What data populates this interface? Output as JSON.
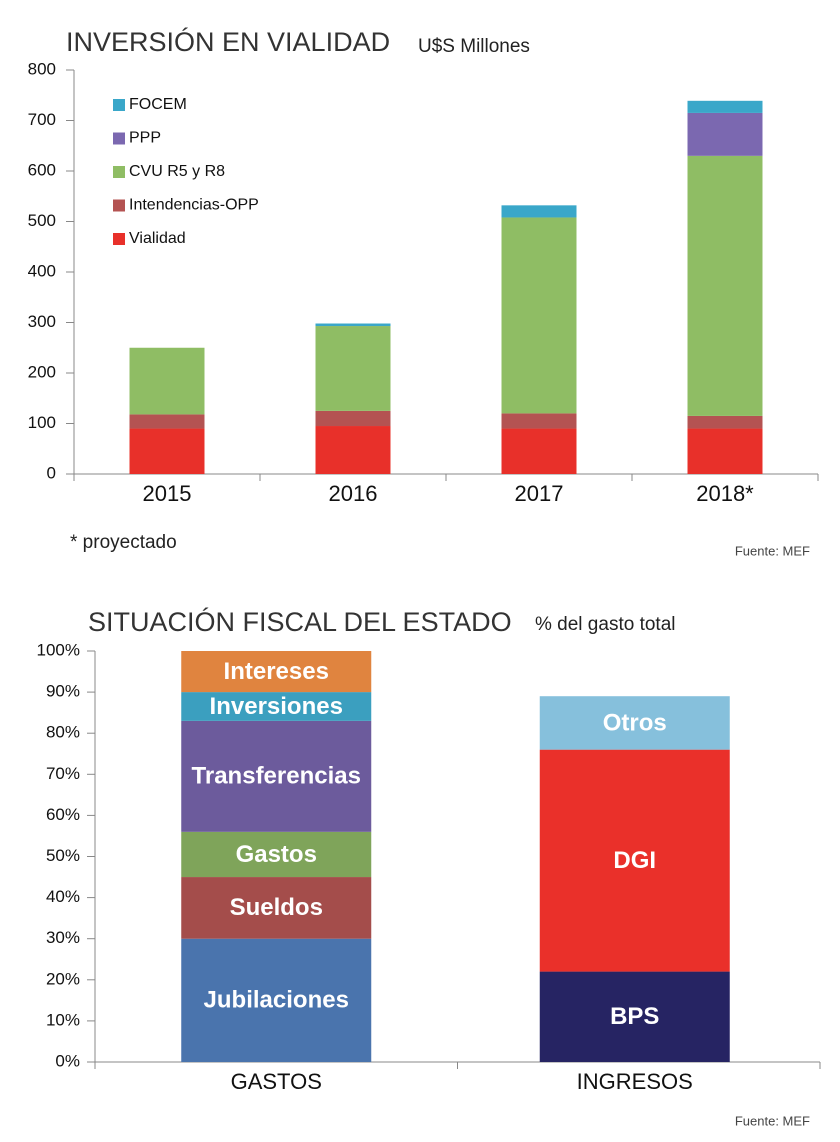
{
  "chart_data": [
    {
      "type": "bar",
      "stacked": true,
      "title": "INVERSIÓN EN  VIALIDAD",
      "subtitle": "U$S Millones",
      "categories": [
        "2015",
        "2016",
        "2017",
        "2018*"
      ],
      "series": [
        {
          "name": "Vialidad",
          "color": "#e8302a",
          "values": [
            90,
            95,
            90,
            90
          ]
        },
        {
          "name": "Intendencias-OPP",
          "color": "#b45352",
          "values": [
            28,
            30,
            30,
            25
          ]
        },
        {
          "name": "CVU R5 y R8",
          "color": "#8fbd64",
          "values": [
            132,
            168,
            388,
            515
          ]
        },
        {
          "name": "PPP",
          "color": "#7b68b0",
          "values": [
            0,
            0,
            0,
            85
          ]
        },
        {
          "name": "FOCEM",
          "color": "#3aa7c9",
          "values": [
            0,
            5,
            24,
            24
          ]
        }
      ],
      "ylim": [
        0,
        800
      ],
      "yticks": [
        0,
        100,
        200,
        300,
        400,
        500,
        600,
        700,
        800
      ],
      "legend": "top-left",
      "note": "* proyectado",
      "source": "Fuente: MEF"
    },
    {
      "type": "bar",
      "stacked": true,
      "title": "SITUACIÓN FISCAL DEL ESTADO",
      "subtitle": "% del gasto total",
      "categories": [
        "GASTOS",
        "INGRESOS"
      ],
      "series": [
        {
          "name": "Jubilaciones",
          "color": "#4a74ad",
          "values": [
            30,
            null
          ]
        },
        {
          "name": "Sueldos",
          "color": "#a44d4b",
          "values": [
            15,
            null
          ]
        },
        {
          "name": "Gastos",
          "color": "#7fa45a",
          "values": [
            11,
            null
          ]
        },
        {
          "name": "Transferencias",
          "color": "#6c5b9c",
          "values": [
            27,
            null
          ]
        },
        {
          "name": "Inversiones",
          "color": "#3b9fbf",
          "values": [
            7,
            null
          ]
        },
        {
          "name": "Intereses",
          "color": "#e0843f",
          "values": [
            10,
            null
          ]
        },
        {
          "name": "BPS",
          "color": "#262463",
          "values": [
            null,
            22
          ]
        },
        {
          "name": "DGI",
          "color": "#ea302a",
          "values": [
            null,
            54
          ]
        },
        {
          "name": "Otros",
          "color": "#86c0dc",
          "values": [
            null,
            13
          ]
        }
      ],
      "ylim": [
        0,
        100
      ],
      "yticks": [
        {
          "value": 0,
          "label": "0%"
        },
        {
          "value": 10,
          "label": "10%"
        },
        {
          "value": 20,
          "label": "20%"
        },
        {
          "value": 30,
          "label": "30%"
        },
        {
          "value": 40,
          "label": "40%"
        },
        {
          "value": 50,
          "label": "50%"
        },
        {
          "value": 60,
          "label": "60%"
        },
        {
          "value": 70,
          "label": "70%"
        },
        {
          "value": 80,
          "label": "80%"
        },
        {
          "value": 90,
          "label": "90%"
        },
        {
          "value": 100,
          "label": "100%"
        }
      ],
      "segment_labels": true,
      "source": "Fuente: MEF"
    }
  ]
}
